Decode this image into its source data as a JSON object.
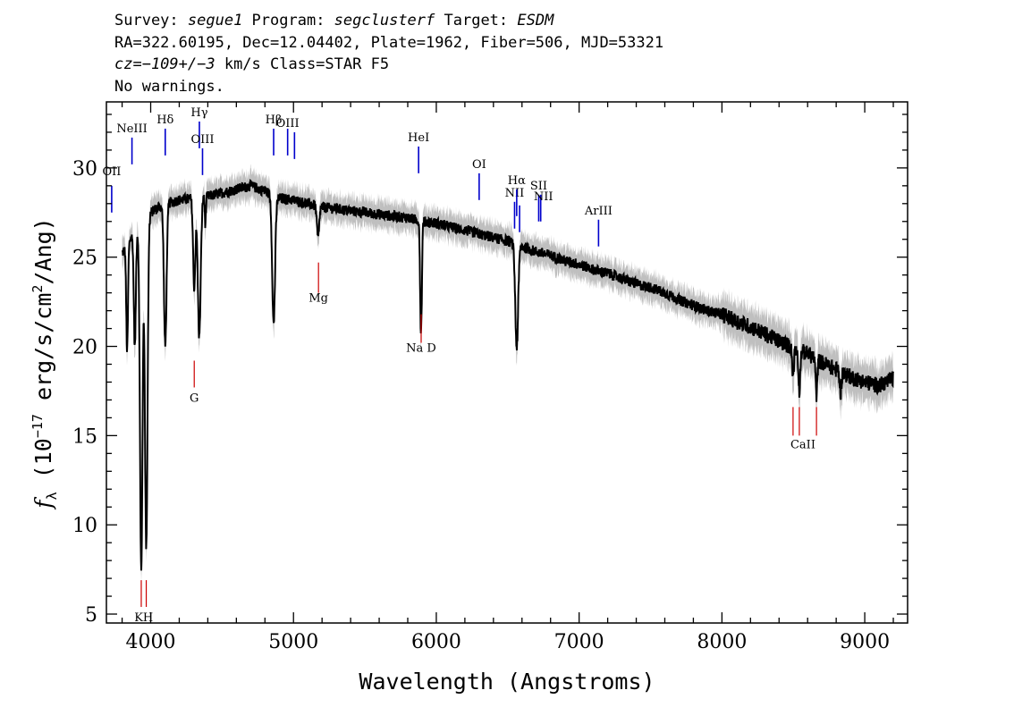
{
  "header": {
    "survey_label": "Survey: ",
    "survey_value": "segue1",
    "program_label": " Program: ",
    "program_value": "segclusterf",
    "target_label": " Target: ",
    "target_value": "ESDM",
    "line2": "RA=322.60195, Dec=12.04402, Plate=1962, Fiber=506, MJD=53321",
    "cz_value": "cz=−109+/−3",
    "cz_rest": " km/s Class=STAR F5",
    "line4": "No warnings."
  },
  "chart_data": {
    "type": "line",
    "xlabel": "Wavelength (Angstroms)",
    "ylabel_prefix": "f",
    "ylabel_sub": "λ",
    "ylabel_main": " (10",
    "ylabel_exp": "−17",
    "ylabel_units": " erg/s/cm",
    "ylabel_sq": "2",
    "ylabel_tail": "/Ang)",
    "xlim": [
      3690,
      9300
    ],
    "ylim": [
      4.5,
      33.7
    ],
    "xticks": [
      "4000",
      "5000",
      "6000",
      "7000",
      "8000",
      "9000"
    ],
    "yticks": [
      "5",
      "10",
      "15",
      "20",
      "25",
      "30"
    ],
    "continuum": [
      [
        3800,
        25.2
      ],
      [
        3900,
        26.6
      ],
      [
        4000,
        27.5
      ],
      [
        4100,
        28.0
      ],
      [
        4200,
        28.2
      ],
      [
        4300,
        28.3
      ],
      [
        4400,
        28.4
      ],
      [
        4500,
        28.6
      ],
      [
        4600,
        28.8
      ],
      [
        4700,
        29.0
      ],
      [
        4800,
        28.7
      ],
      [
        4900,
        28.3
      ],
      [
        5000,
        28.2
      ],
      [
        5100,
        28.0
      ],
      [
        5200,
        27.8
      ],
      [
        5300,
        27.7
      ],
      [
        5400,
        27.6
      ],
      [
        5500,
        27.5
      ],
      [
        5600,
        27.4
      ],
      [
        5700,
        27.3
      ],
      [
        5800,
        27.2
      ],
      [
        5900,
        27.0
      ],
      [
        6000,
        26.9
      ],
      [
        6100,
        26.7
      ],
      [
        6200,
        26.5
      ],
      [
        6300,
        26.3
      ],
      [
        6400,
        26.1
      ],
      [
        6500,
        25.9
      ],
      [
        6600,
        25.6
      ],
      [
        6700,
        25.3
      ],
      [
        6800,
        25.1
      ],
      [
        6900,
        24.8
      ],
      [
        7000,
        24.6
      ],
      [
        7100,
        24.3
      ],
      [
        7200,
        24.1
      ],
      [
        7300,
        23.8
      ],
      [
        7400,
        23.5
      ],
      [
        7500,
        23.3
      ],
      [
        7600,
        23.0
      ],
      [
        7700,
        22.6
      ],
      [
        7800,
        22.3
      ],
      [
        7900,
        22.0
      ],
      [
        8000,
        21.8
      ],
      [
        8100,
        21.4
      ],
      [
        8200,
        21.1
      ],
      [
        8300,
        20.7
      ],
      [
        8400,
        20.3
      ],
      [
        8500,
        19.9
      ],
      [
        8600,
        19.6
      ],
      [
        8700,
        19.1
      ],
      [
        8800,
        18.7
      ],
      [
        8900,
        18.3
      ],
      [
        9000,
        18.0
      ],
      [
        9100,
        17.8
      ],
      [
        9200,
        18.2
      ]
    ],
    "absorption_lines": [
      {
        "wave": 3835,
        "depth": 6.0,
        "width": 6
      },
      {
        "wave": 3889,
        "depth": 6.5,
        "width": 7
      },
      {
        "wave": 3934,
        "depth": 19.5,
        "width": 9
      },
      {
        "wave": 3969,
        "depth": 18.5,
        "width": 9
      },
      {
        "wave": 4102,
        "depth": 8.0,
        "width": 9
      },
      {
        "wave": 4305,
        "depth": 5.0,
        "width": 8
      },
      {
        "wave": 4340,
        "depth": 7.8,
        "width": 10
      },
      {
        "wave": 4383,
        "depth": 1.5,
        "width": 4
      },
      {
        "wave": 4861,
        "depth": 7.2,
        "width": 10
      },
      {
        "wave": 5172,
        "depth": 1.8,
        "width": 8
      },
      {
        "wave": 5890,
        "depth": 4.0,
        "width": 5
      },
      {
        "wave": 5896,
        "depth": 3.5,
        "width": 5
      },
      {
        "wave": 6563,
        "depth": 5.8,
        "width": 10
      },
      {
        "wave": 8498,
        "depth": 1.5,
        "width": 6
      },
      {
        "wave": 8542,
        "depth": 2.2,
        "width": 6
      },
      {
        "wave": 8662,
        "depth": 2.0,
        "width": 6
      },
      {
        "wave": 8830,
        "depth": 1.2,
        "width": 6
      }
    ],
    "emission_lines": [
      {
        "label": "OII",
        "wave": 3727,
        "y_bottom": 27.5,
        "y_top": 29.0,
        "label_y": 29.6
      },
      {
        "label": "NeIII",
        "wave": 3869,
        "y_bottom": 30.2,
        "y_top": 31.7,
        "label_y": 32.0
      },
      {
        "label": "Hδ",
        "wave": 4102,
        "y_bottom": 30.7,
        "y_top": 32.2,
        "label_y": 32.5
      },
      {
        "label": "Hγ",
        "wave": 4341,
        "y_bottom": 31.1,
        "y_top": 32.6,
        "label_y": 32.9
      },
      {
        "label": "OIII",
        "wave": 4363,
        "y_bottom": 29.6,
        "y_top": 31.1,
        "label_y": 31.4
      },
      {
        "label": "Hβ",
        "wave": 4861,
        "y_bottom": 30.7,
        "y_top": 32.2,
        "label_y": 32.5
      },
      {
        "label": "OIII",
        "wave": 4959,
        "y_bottom": 30.7,
        "y_top": 32.2,
        "label_y": 32.3
      },
      {
        "label": "OIII",
        "wave": 5007,
        "y_bottom": 30.5,
        "y_top": 32.0,
        "label_y": 0
      },
      {
        "label": "HeI",
        "wave": 5876,
        "y_bottom": 29.7,
        "y_top": 31.2,
        "label_y": 31.5
      },
      {
        "label": "OI",
        "wave": 6300,
        "y_bottom": 28.2,
        "y_top": 29.7,
        "label_y": 30.0
      },
      {
        "label": "NII",
        "wave": 6548,
        "y_bottom": 26.6,
        "y_top": 28.1,
        "label_y": 28.4
      },
      {
        "label": "Hα",
        "wave": 6563,
        "y_bottom": 27.3,
        "y_top": 28.8,
        "label_y": 29.1
      },
      {
        "label": "NII",
        "wave": 6583,
        "y_bottom": 26.4,
        "y_top": 27.9,
        "label_y": 0
      },
      {
        "label": "SII",
        "wave": 6717,
        "y_bottom": 27.0,
        "y_top": 28.5,
        "label_y": 28.8
      },
      {
        "label": "SII",
        "wave": 6731,
        "y_bottom": 27.0,
        "y_top": 28.5,
        "label_y": 0
      },
      {
        "label": "ArIII",
        "wave": 7136,
        "y_bottom": 25.6,
        "y_top": 27.1,
        "label_y": 27.4
      }
    ],
    "extra_labels": [
      {
        "label": "NII",
        "wave": 6750,
        "label_y": 28.2
      }
    ],
    "abs_markers": [
      {
        "label": "KH",
        "waves": [
          3934,
          3969
        ],
        "y_bottom": 5.4,
        "y_top": 6.9,
        "label_y": 4.6
      },
      {
        "label": "G",
        "waves": [
          4305
        ],
        "y_bottom": 17.7,
        "y_top": 19.2,
        "label_y": 16.9
      },
      {
        "label": "Mg",
        "waves": [
          5175
        ],
        "y_bottom": 23.0,
        "y_top": 24.7,
        "label_y": 22.5
      },
      {
        "label": "Na D",
        "waves": [
          5894
        ],
        "y_bottom": 20.2,
        "y_top": 21.8,
        "label_y": 19.7
      },
      {
        "label": "CaII",
        "waves": [
          8498,
          8542,
          8662
        ],
        "y_bottom": 15.0,
        "y_top": 16.6,
        "label_y": 14.3
      }
    ],
    "colors": {
      "flux": "#000000",
      "error": "#bfbfbf",
      "emission": "#0000cc",
      "absorption": "#cc0000"
    }
  }
}
